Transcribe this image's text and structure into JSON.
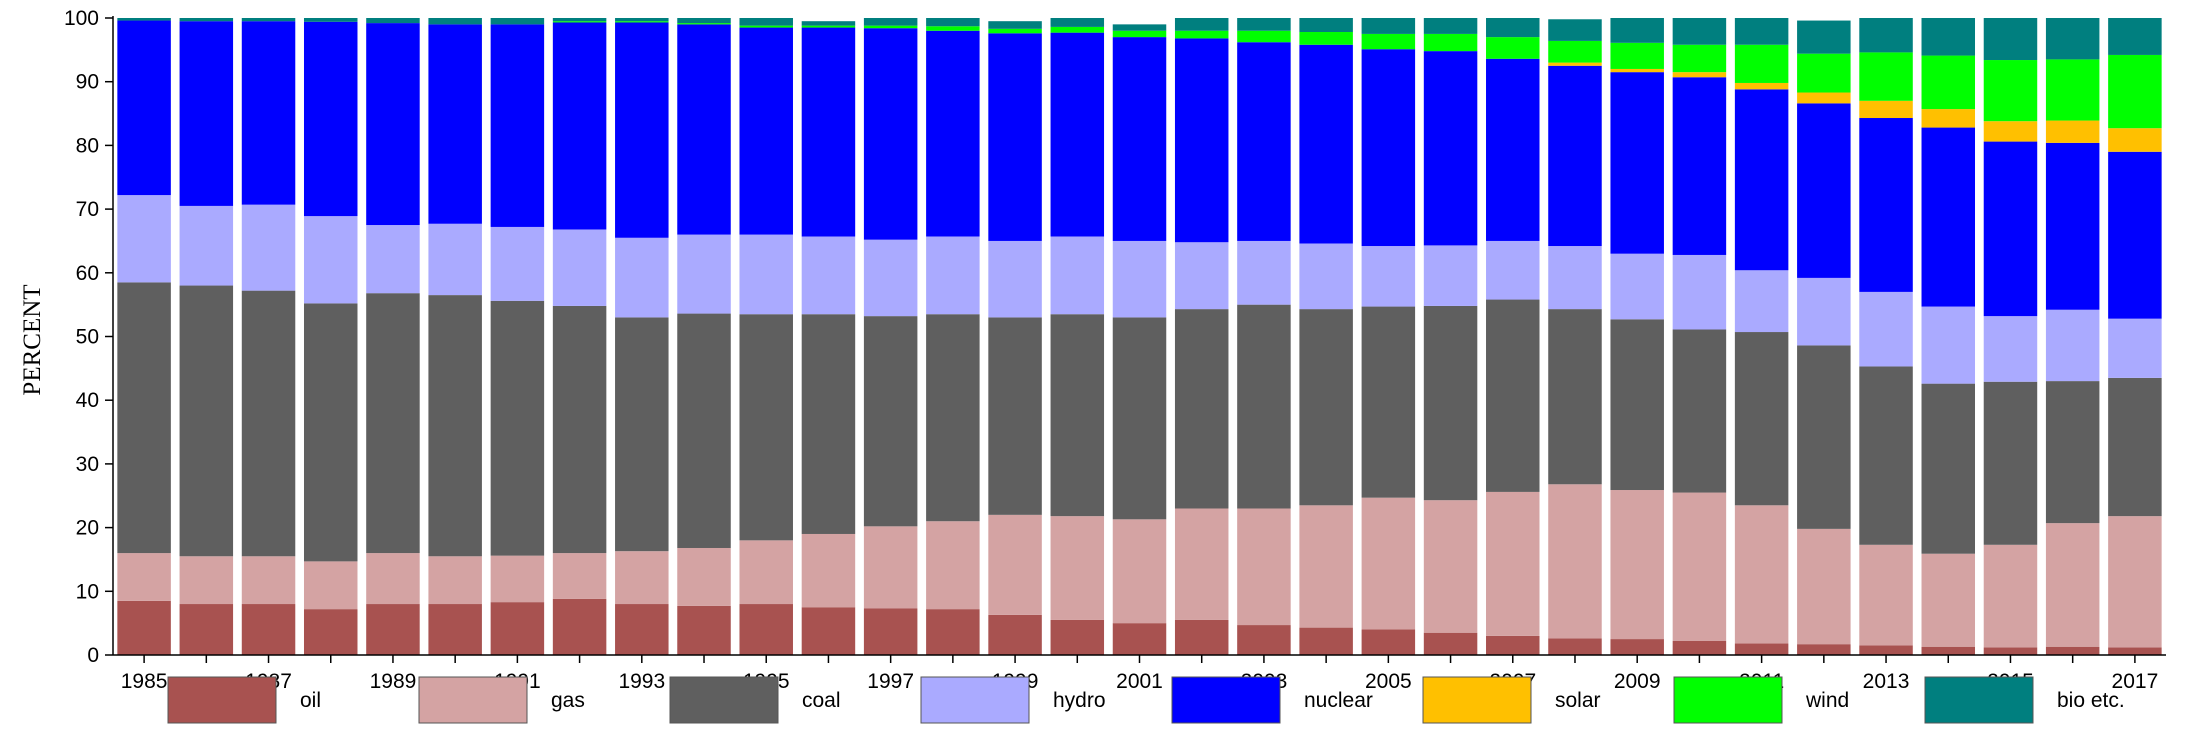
{
  "chart_data": {
    "type": "bar",
    "stacked": true,
    "title": "",
    "xlabel": "",
    "ylabel": "PERCENT",
    "ylim": [
      0,
      100
    ],
    "yticks": [
      0,
      10,
      20,
      30,
      40,
      50,
      60,
      70,
      80,
      90,
      100
    ],
    "categories": [
      "1985",
      "1986",
      "1987",
      "1988",
      "1989",
      "1990",
      "1991",
      "1992",
      "1993",
      "1994",
      "1995",
      "1996",
      "1997",
      "1998",
      "1999",
      "2000",
      "2001",
      "2002",
      "2003",
      "2004",
      "2005",
      "2006",
      "2007",
      "2008",
      "2009",
      "2010",
      "2011",
      "2012",
      "2013",
      "2014",
      "2015",
      "2016",
      "2017"
    ],
    "xtick_labels": [
      "1985",
      "1987",
      "1989",
      "1991",
      "1993",
      "1995",
      "1997",
      "1999",
      "2001",
      "2003",
      "2005",
      "2007",
      "2009",
      "2011",
      "2013",
      "2015",
      "2017"
    ],
    "legend_position": "bottom",
    "grid": false,
    "series": [
      {
        "name": "oil",
        "color": "#a85250",
        "values": [
          8.5,
          8.0,
          8.0,
          7.2,
          8.0,
          8.0,
          8.3,
          8.8,
          8.0,
          7.7,
          8.0,
          7.5,
          7.3,
          7.2,
          6.3,
          5.5,
          5.0,
          5.5,
          4.7,
          4.3,
          4.0,
          3.5,
          3.0,
          2.6,
          2.5,
          2.2,
          1.8,
          1.7,
          1.5,
          1.3,
          1.2,
          1.3,
          1.2
        ]
      },
      {
        "name": "gas",
        "color": "#d4a3a3",
        "values": [
          7.5,
          7.5,
          7.5,
          7.5,
          8.0,
          7.5,
          7.3,
          7.2,
          8.3,
          9.1,
          10.0,
          11.5,
          12.9,
          13.8,
          15.7,
          16.3,
          16.3,
          17.5,
          18.3,
          19.2,
          20.7,
          20.8,
          22.6,
          24.2,
          23.4,
          23.3,
          21.7,
          18.1,
          15.8,
          14.6,
          16.1,
          19.4,
          20.6
        ]
      },
      {
        "name": "coal",
        "color": "#5f5f5f",
        "values": [
          42.5,
          42.5,
          41.7,
          40.5,
          40.8,
          41.0,
          40.0,
          38.8,
          36.7,
          36.8,
          35.5,
          34.5,
          33.0,
          32.5,
          31.0,
          31.7,
          31.7,
          31.3,
          32.0,
          30.8,
          30.0,
          30.5,
          30.2,
          27.5,
          26.8,
          25.6,
          27.2,
          28.8,
          28.0,
          26.7,
          25.6,
          22.3,
          21.7
        ]
      },
      {
        "name": "hydro",
        "color": "#aaaaff",
        "values": [
          13.7,
          12.5,
          13.5,
          13.7,
          10.7,
          11.2,
          11.6,
          12.0,
          12.5,
          12.4,
          12.5,
          12.2,
          12.0,
          12.2,
          12.0,
          12.2,
          12.0,
          10.5,
          10.0,
          10.3,
          9.5,
          9.5,
          9.2,
          9.9,
          10.3,
          11.7,
          9.7,
          10.6,
          11.7,
          12.1,
          10.3,
          11.2,
          9.3
        ]
      },
      {
        "name": "nuclear",
        "color": "#0000ff",
        "values": [
          27.4,
          29.0,
          28.8,
          30.5,
          31.7,
          31.3,
          31.8,
          32.5,
          33.8,
          33.0,
          32.5,
          32.8,
          33.2,
          32.3,
          32.6,
          32.0,
          32.0,
          32.0,
          31.2,
          31.2,
          30.9,
          30.5,
          28.6,
          28.3,
          28.5,
          27.9,
          28.4,
          27.4,
          27.3,
          28.1,
          27.4,
          26.2,
          26.2
        ]
      },
      {
        "name": "solar",
        "color": "#ffc000",
        "values": [
          0,
          0,
          0,
          0,
          0,
          0,
          0,
          0,
          0,
          0,
          0,
          0,
          0,
          0,
          0,
          0,
          0,
          0,
          0,
          0,
          0,
          0,
          0,
          0.5,
          0.5,
          0.8,
          1.0,
          1.7,
          2.7,
          2.9,
          3.2,
          3.5,
          3.7
        ]
      },
      {
        "name": "wind",
        "color": "#00ff00",
        "values": [
          0,
          0,
          0,
          0,
          0,
          0,
          0,
          0.2,
          0.2,
          0.2,
          0.3,
          0.3,
          0.4,
          0.7,
          0.7,
          0.9,
          1.0,
          1.2,
          1.8,
          2.0,
          2.4,
          2.7,
          3.4,
          3.4,
          4.1,
          4.3,
          6.0,
          6.1,
          7.6,
          8.4,
          9.6,
          9.6,
          11.5
        ]
      },
      {
        "name": "bio etc.",
        "color": "#007f7f",
        "values": [
          0.4,
          0.5,
          0.5,
          0.6,
          0.8,
          1.0,
          1.0,
          0.5,
          0.5,
          0.8,
          1.2,
          0.7,
          1.2,
          1.3,
          1.2,
          1.4,
          1.0,
          2.0,
          2.0,
          2.2,
          2.5,
          2.5,
          3.0,
          3.4,
          3.9,
          4.2,
          4.2,
          5.2,
          5.4,
          5.9,
          6.6,
          6.5,
          5.8
        ]
      }
    ]
  }
}
